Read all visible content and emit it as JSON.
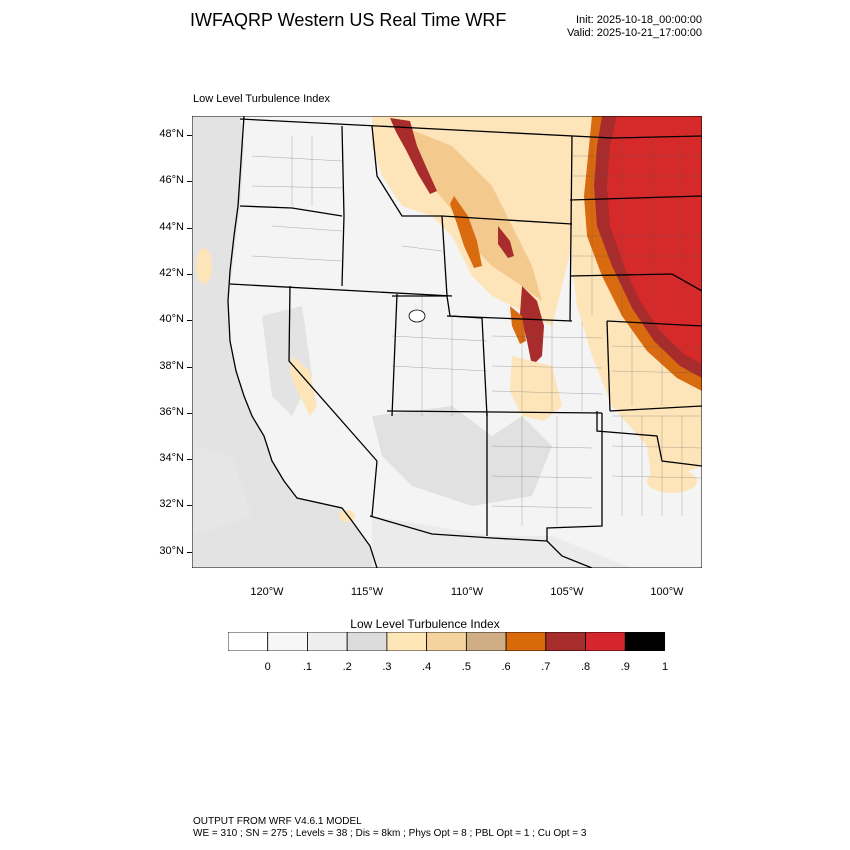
{
  "header": {
    "title": "IWFAQRP Western US Real Time WRF",
    "init": "Init: 2025-10-18_00:00:00",
    "valid": "Valid: 2025-10-21_17:00:00"
  },
  "map": {
    "subtitle": "Low Level Turbulence Index",
    "lat_labels": [
      "48°N",
      "46°N",
      "44°N",
      "42°N",
      "40°N",
      "38°N",
      "36°N",
      "34°N",
      "32°N",
      "30°N"
    ],
    "lon_labels": [
      "120°W",
      "115°W",
      "110°W",
      "105°W",
      "100°W"
    ],
    "colors": {
      "background_gray": "#e3e3e3",
      "land_light": "#f4f4f4",
      "pale_orange": "#fde5b9",
      "tan": "#f4c98e",
      "red": "#d62a2a",
      "dark_red": "#a82c2c",
      "orange": "#d86a10"
    }
  },
  "colorbar": {
    "title": "Low Level Turbulence Index",
    "colors": [
      "#ffffff",
      "#f7f7f7",
      "#eeeeee",
      "#dcdcdc",
      "#ffe6b8",
      "#f5d39e",
      "#cfae85",
      "#d86a0c",
      "#a72c2c",
      "#d4262c",
      "#000000"
    ],
    "labels": [
      "0",
      ".1",
      ".2",
      ".3",
      ".4",
      ".5",
      ".6",
      ".7",
      ".8",
      ".9",
      "1"
    ]
  },
  "footer": {
    "line1": "OUTPUT FROM WRF V4.6.1 MODEL",
    "line2": "WE = 310 ; SN = 275 ; Levels = 38 ; Dis = 8km ; Phys Opt = 8 ; PBL Opt = 1 ; Cu Opt = 3"
  }
}
